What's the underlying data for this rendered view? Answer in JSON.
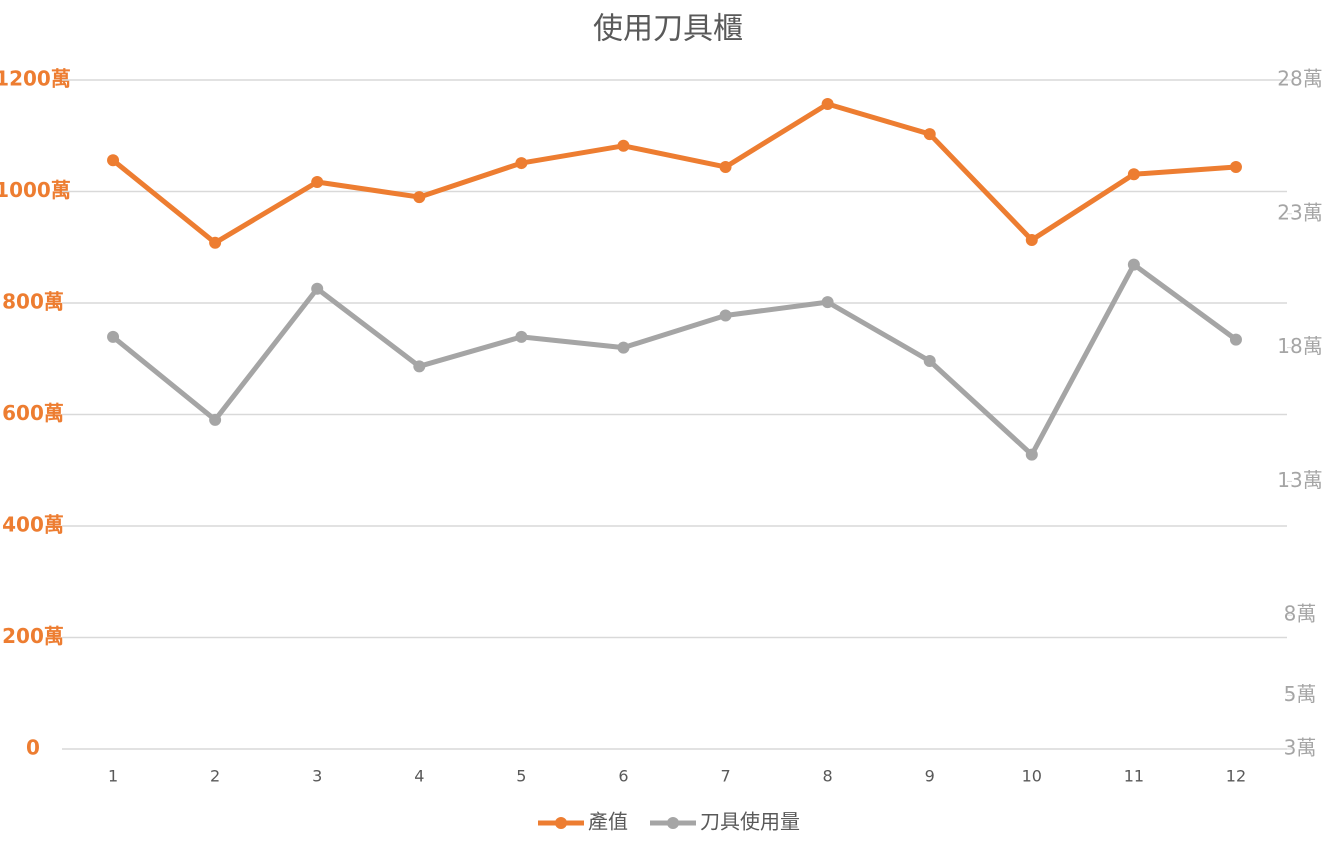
{
  "chart_data": {
    "type": "line",
    "title": "使用刀具櫃",
    "categories": [
      "1",
      "2",
      "3",
      "4",
      "5",
      "6",
      "7",
      "8",
      "9",
      "10",
      "11",
      "12"
    ],
    "series": [
      {
        "name": "產值",
        "color": "#ed7d31",
        "values": [
          1056,
          908,
          1017,
          990,
          1051,
          1082,
          1044,
          1157,
          1103,
          913,
          1031,
          1044
        ]
      },
      {
        "name": "刀具使用量",
        "color": "#a5a5a5",
        "axis": "y2",
        "values": [
          18.4,
          15.3,
          20.2,
          17.3,
          18.4,
          18.0,
          19.2,
          19.7,
          17.5,
          14.0,
          21.1,
          18.3
        ]
      }
    ],
    "ylim": [
      0,
      1200
    ],
    "yticks": [
      0,
      {
        "value": 200,
        "label": "200萬"
      },
      {
        "value": 400,
        "label": "400萬"
      },
      {
        "value": 600,
        "label": "600萬"
      },
      {
        "value": 800,
        "label": "800萬"
      },
      {
        "value": 1000,
        "label": "1000萬"
      },
      {
        "value": 1200,
        "label": "1200萬"
      }
    ],
    "y2lim": [
      3,
      28
    ],
    "y2ticks": [
      {
        "value": 3,
        "label": "3萬"
      },
      {
        "value": 5,
        "label": "5萬"
      },
      {
        "value": 8,
        "label": "8萬"
      },
      {
        "value": 13,
        "label": "13萬"
      },
      {
        "value": 18,
        "label": "18萬"
      },
      {
        "value": 23,
        "label": "23萬"
      },
      {
        "value": 28,
        "label": "28萬"
      }
    ],
    "grid": true,
    "legend": "bottom"
  }
}
